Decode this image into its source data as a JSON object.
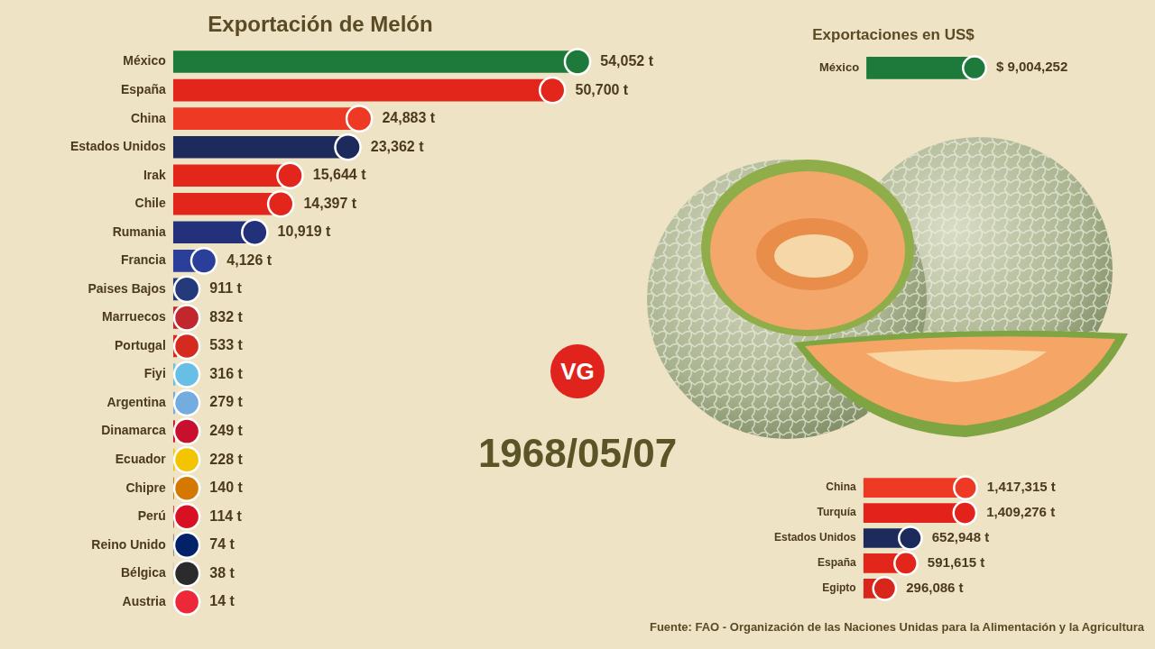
{
  "chart_data": [
    {
      "type": "bar",
      "title": "Exportación de Melón",
      "orientation": "horizontal",
      "categories": [
        "México",
        "España",
        "China",
        "Estados Unidos",
        "Irak",
        "Chile",
        "Rumania",
        "Francia",
        "Paises Bajos",
        "Marruecos",
        "Portugal",
        "Fiyi",
        "Argentina",
        "Dinamarca",
        "Ecuador",
        "Chipre",
        "Perú",
        "Reino Unido",
        "Bélgica",
        "Austria"
      ],
      "values": [
        54052,
        50700,
        24883,
        23362,
        15644,
        14397,
        10919,
        4126,
        911,
        832,
        533,
        316,
        279,
        249,
        228,
        140,
        114,
        74,
        38,
        14
      ],
      "value_labels": [
        "54,052 t",
        "50,700 t",
        "24,883 t",
        "23,362 t",
        "15,644 t",
        "14,397 t",
        "10,919 t",
        "4,126 t",
        "911 t",
        "832 t",
        "533 t",
        "316 t",
        "279 t",
        "249 t",
        "228 t",
        "140 t",
        "114 t",
        "74 t",
        "38 t",
        "14 t"
      ],
      "colors": [
        "#1d7a3a",
        "#e2261c",
        "#ee3a24",
        "#1c2a5c",
        "#e2261c",
        "#e2261c",
        "#23307a",
        "#2a3f9a",
        "#243a7a",
        "#c1272d",
        "#d52b1e",
        "#68bfe5",
        "#74acdf",
        "#c8102e",
        "#f2c500",
        "#d57800",
        "#d91023",
        "#012169",
        "#2b2b2b",
        "#ed2939"
      ],
      "data_labels": true,
      "tick_labels": "y",
      "grid": false,
      "xlim": [
        0,
        54052
      ]
    },
    {
      "type": "bar",
      "title": "Exportaciones en US$",
      "orientation": "horizontal",
      "categories": [
        "México"
      ],
      "values": [
        9004252
      ],
      "value_labels": [
        "$ 9,004,252"
      ],
      "colors": [
        "#1d7a3a"
      ],
      "data_labels": true,
      "tick_labels": "y",
      "grid": false,
      "xlim": [
        0,
        9004252
      ]
    },
    {
      "type": "bar",
      "orientation": "horizontal",
      "categories": [
        "China",
        "Turquía",
        "Estados Unidos",
        "España",
        "Egipto"
      ],
      "values": [
        1417315,
        1409276,
        652948,
        591615,
        296086
      ],
      "value_labels": [
        "1,417,315 t",
        "1,409,276 t",
        "652,948 t",
        "591,615 t",
        "296,086 t"
      ],
      "colors": [
        "#ee3a24",
        "#e3221b",
        "#1c2a5c",
        "#e2261c",
        "#d8261c"
      ],
      "data_labels": true,
      "tick_labels": "y",
      "grid": false,
      "xlim": [
        0,
        1417315
      ]
    }
  ],
  "date": "1968/05/07",
  "logo": "VG",
  "source": "Fuente: FAO - Organización de las Naciones Unidas para la Alimentación y la Agricultura"
}
